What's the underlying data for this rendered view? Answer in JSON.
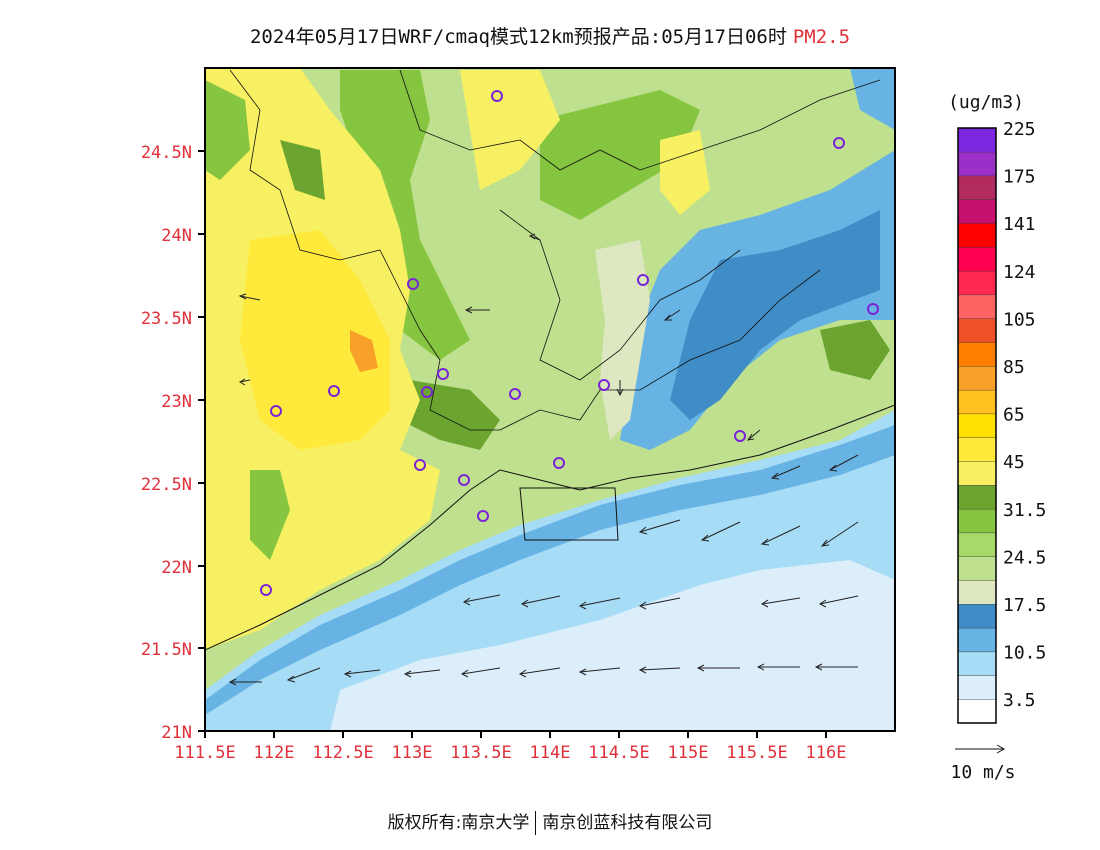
{
  "header": {
    "title": "2024年05月17日WRF/cmaq模式12km预报产品:05月17日06时",
    "species": "PM2.5"
  },
  "map": {
    "lon_range": [
      111.5,
      116.5
    ],
    "lat_range": [
      21.0,
      25.0
    ],
    "x_ticks": [
      "111.5E",
      "112E",
      "112.5E",
      "113E",
      "113.5E",
      "114E",
      "114.5E",
      "115E",
      "115.5E",
      "116E"
    ],
    "y_ticks": [
      "21N",
      "21.5N",
      "22N",
      "22.5N",
      "23N",
      "23.5N",
      "24N",
      "24.5N"
    ],
    "wind_direction": "mostly from east / north-east",
    "station_markers": 17
  },
  "colorbar": {
    "unit": "(ug/m3)",
    "colors": [
      "#ffffff",
      "#dbeefa",
      "#a6dcf5",
      "#66b3e4",
      "#3f8cc6",
      "#dde8c2",
      "#bfe08e",
      "#a8d868",
      "#86c540",
      "#6ba530",
      "#f6f062",
      "#ffe93a",
      "#ffe000",
      "#ffc020",
      "#f7a129",
      "#ff8000",
      "#ee5028",
      "#ff6464",
      "#ff2850",
      "#ff0050",
      "#ff0000",
      "#c8106e",
      "#b12b5f",
      "#9b30c8",
      "#7e27e0"
    ],
    "labels": [
      "3.5",
      "10.5",
      "17.5",
      "24.5",
      "31.5",
      "45",
      "65",
      "85",
      "105",
      "124",
      "141",
      "175",
      "225"
    ]
  },
  "wind_legend": {
    "label": "10 m/s"
  },
  "footer": {
    "left": "版权所有:南京大学",
    "right": "南京创蓝科技有限公司"
  }
}
